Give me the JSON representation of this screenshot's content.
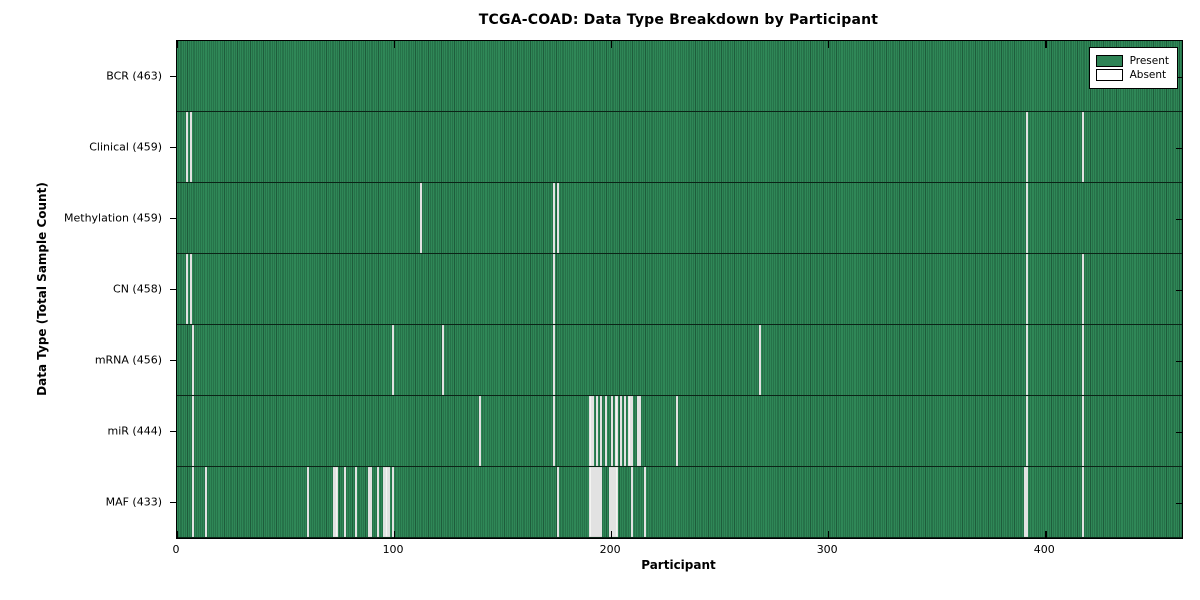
{
  "title": "TCGA-COAD: Data Type Breakdown by Participant",
  "axis": {
    "xlabel": "Participant",
    "ylabel": "Data Type (Total Sample Count)"
  },
  "legend": {
    "present_label": "Present",
    "absent_label": "Absent"
  },
  "colors": {
    "present_fill": "#2e8b57",
    "present_edge": "#1e5c3b",
    "absent_fill": "#ffffff",
    "axis_color": "#000000"
  },
  "chart_data": {
    "type": "heatmap",
    "title": "TCGA-COAD: Data Type Breakdown by Participant",
    "xlabel": "Participant",
    "ylabel": "Data Type (Total Sample Count)",
    "legend_entries": [
      "Present",
      "Absent"
    ],
    "legend_position": "upper right",
    "grid": false,
    "n_participants": 463,
    "xlim": [
      0,
      463
    ],
    "x_ticks": [
      0,
      100,
      200,
      300,
      400
    ],
    "cell_values": "present unless participant index listed in absent[]",
    "rows": [
      {
        "label": "BCR (463)",
        "data_type": "BCR",
        "total_samples": 463,
        "absent": []
      },
      {
        "label": "Clinical (459)",
        "data_type": "Clinical",
        "total_samples": 459,
        "absent": [
          4,
          6,
          391,
          417
        ]
      },
      {
        "label": "Methylation (459)",
        "data_type": "Methylation",
        "total_samples": 459,
        "absent": [
          112,
          173,
          175,
          391
        ]
      },
      {
        "label": "CN (458)",
        "data_type": "CN",
        "total_samples": 458,
        "absent": [
          4,
          6,
          173,
          391,
          417
        ]
      },
      {
        "label": "mRNA (456)",
        "data_type": "mRNA",
        "total_samples": 456,
        "absent": [
          7,
          99,
          122,
          173,
          268,
          391,
          417
        ]
      },
      {
        "label": "miR (444)",
        "data_type": "miR",
        "total_samples": 444,
        "absent": [
          7,
          139,
          173,
          190,
          191,
          193,
          195,
          197,
          200,
          202,
          204,
          206,
          208,
          209,
          212,
          213,
          230,
          391,
          417
        ]
      },
      {
        "label": "MAF (433)",
        "data_type": "MAF",
        "total_samples": 433,
        "absent": [
          7,
          13,
          60,
          72,
          73,
          77,
          82,
          88,
          89,
          92,
          95,
          96,
          97,
          99,
          175,
          190,
          191,
          192,
          193,
          194,
          195,
          199,
          200,
          201,
          202,
          209,
          215,
          390,
          391,
          417
        ]
      }
    ]
  }
}
